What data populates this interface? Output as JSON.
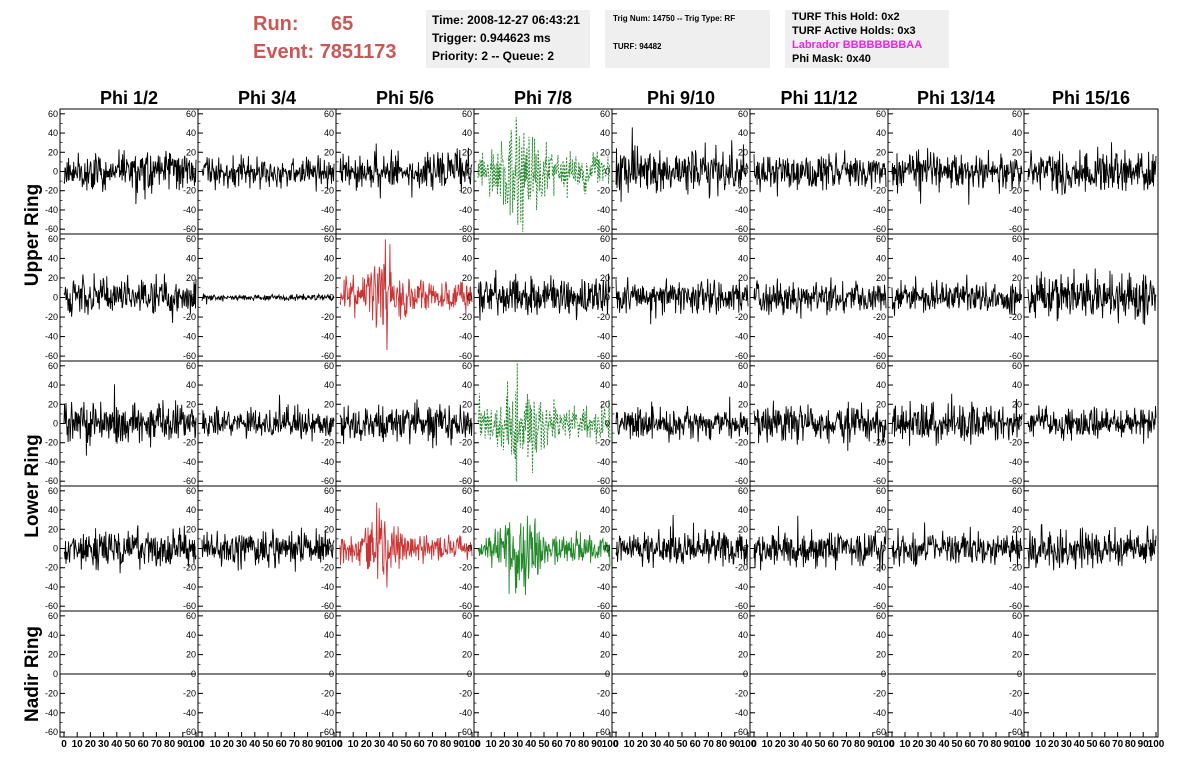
{
  "header": {
    "run_label": "Run:",
    "run_value": "65",
    "event_label": "Event:",
    "event_value": "7851173",
    "time": "Time: 2008-12-27 06:43:21",
    "trigger": "Trigger: 0.944623 ms",
    "priority": "Priority: 2 -- Queue: 2",
    "trig_num": "Trig Num: 14750 -- Trig Type: RF",
    "turf": "TURF: 94482",
    "turf_this_hold": "TURF This Hold: 0x2",
    "turf_active_holds": "TURF Active Holds: 0x3",
    "labrador": "Labrador BBBBBBBBAA",
    "phi_mask": "Phi Mask: 0x40"
  },
  "colors": {
    "run_text": "#cc5555",
    "normal_trace": "#000000",
    "triggered_trace": "#cc3333",
    "masked_trace": "#22882a",
    "labrador_text": "#ee22ee",
    "info_box_bg": "#efefef"
  },
  "chart_data": {
    "type": "line",
    "columns": [
      "Phi 1/2",
      "Phi 3/4",
      "Phi 5/6",
      "Phi 7/8",
      "Phi 9/10",
      "Phi 11/12",
      "Phi 13/14",
      "Phi 15/16"
    ],
    "rows": [
      "Upper Ring",
      "Lower Ring",
      "Nadir Ring"
    ],
    "subrows_per_ring": [
      2,
      2,
      1
    ],
    "ylim": [
      -65,
      65
    ],
    "y_ticks": [
      -60,
      -40,
      -20,
      0,
      20,
      40,
      60
    ],
    "xlim": [
      0,
      100
    ],
    "x_tick_labels": [
      "0",
      "10",
      "20",
      "30",
      "40",
      "50",
      "60",
      "70",
      "80",
      "90",
      "100"
    ],
    "panel_styles": [
      [
        "normal",
        "normal",
        "normal",
        "masked-dashed",
        "normal",
        "normal",
        "normal",
        "normal"
      ],
      [
        "normal",
        "quiet",
        "triggered",
        "normal",
        "normal",
        "normal",
        "normal",
        "normal"
      ],
      [
        "normal",
        "normal",
        "normal",
        "masked-dashed",
        "normal",
        "normal",
        "normal",
        "normal"
      ],
      [
        "normal",
        "normal",
        "triggered",
        "masked-solid",
        "normal",
        "normal",
        "normal",
        "normal"
      ],
      [
        "flat",
        "flat",
        "flat",
        "flat",
        "flat",
        "flat",
        "flat",
        "flat"
      ]
    ],
    "trace_amplitude": [
      [
        12,
        10,
        12,
        22,
        14,
        10,
        12,
        14
      ],
      [
        12,
        2,
        18,
        12,
        10,
        10,
        10,
        14
      ],
      [
        13,
        10,
        12,
        20,
        10,
        12,
        12,
        10
      ],
      [
        12,
        11,
        14,
        16,
        10,
        12,
        10,
        12
      ],
      [
        0,
        0,
        0,
        0,
        0,
        0,
        0,
        0
      ]
    ]
  }
}
